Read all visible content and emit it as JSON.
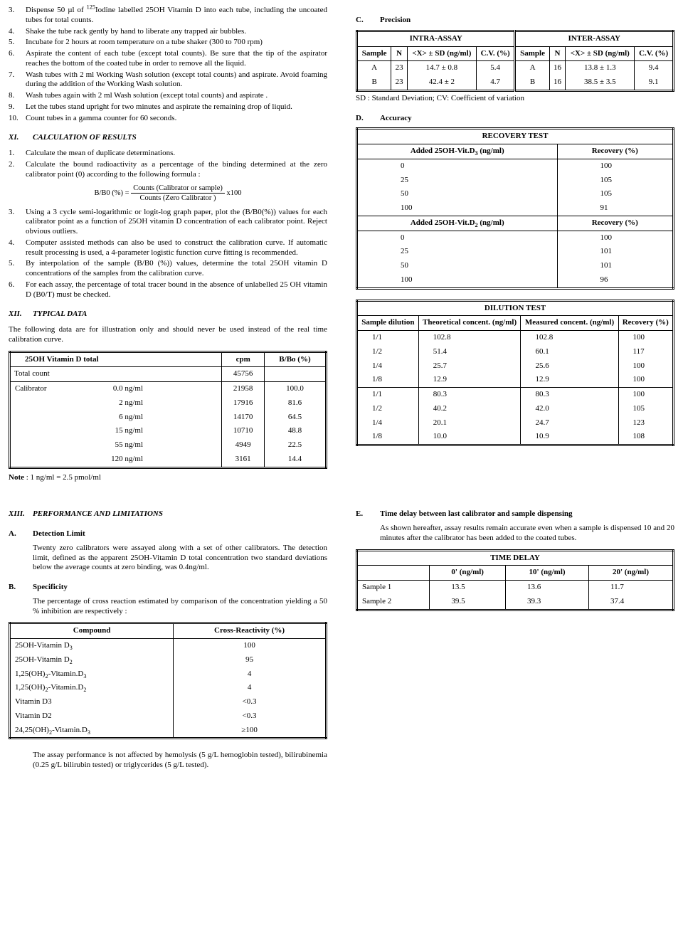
{
  "procedure": [
    {
      "n": "3.",
      "t": "Dispense 50 µl of <sup>125</sup>Iodine labelled 25OH Vitamin D into each tube, including the uncoated tubes for total counts."
    },
    {
      "n": "4.",
      "t": "Shake the tube rack gently by hand to liberate any trapped air bubbles."
    },
    {
      "n": "5.",
      "t": "Incubate for 2 hours at room temperature on a tube shaker (300 to 700 rpm)"
    },
    {
      "n": "6.",
      "t": "Aspirate the content of each tube (except total counts). Be sure that the tip of the aspirator reaches the bottom of the coated tube in order to remove all the liquid."
    },
    {
      "n": "7.",
      "t": "Wash tubes with 2 ml Working Wash solution (except total counts) and aspirate. Avoid foaming during the addition of the Working Wash solution."
    },
    {
      "n": "8.",
      "t": "Wash tubes again with 2 ml Wash solution (except total counts) and aspirate ."
    },
    {
      "n": "9.",
      "t": "Let the tubes stand upright for two minutes and aspirate the remaining drop of liquid."
    },
    {
      "n": "10.",
      "t": "Count tubes in a gamma counter for 60 seconds."
    }
  ],
  "xi": {
    "roman": "XI.",
    "title": "CALCULATION OF RESULTS"
  },
  "calc": [
    {
      "n": "1.",
      "t": "Calculate the mean of duplicate determinations."
    },
    {
      "n": "2.",
      "t": "Calculate the bound radioactivity as a percentage of the binding determined at the zero calibrator point (0) according to the following formula :"
    }
  ],
  "formula": {
    "prefix": "B/B0 (%) =",
    "top": "Counts (Calibrator or sample)",
    "bot": "Counts (Zero Calibrator )",
    "suffix": "x100"
  },
  "calc2": [
    {
      "n": "3.",
      "t": "Using a 3 cycle semi-logarithmic or logit-log graph paper, plot the (B/B0(%)) values for each calibrator point as a function of 25OH vitamin D concentration of each calibrator point. Reject obvious outliers."
    },
    {
      "n": "4.",
      "t": "Computer assisted methods can also be used to construct the calibration curve. If automatic result processing is used, a 4-parameter logistic function curve fitting is recommended."
    },
    {
      "n": "5.",
      "t": "By interpolation of the sample (B/B0 (%)) values, determine the total 25OH vitamin D concentrations of the samples from the calibration curve."
    },
    {
      "n": "6.",
      "t": "For each assay, the percentage of total tracer bound in the absence of unlabelled 25 OH vitamin D (B0/T) must be checked."
    }
  ],
  "xii": {
    "roman": "XII.",
    "title": "TYPICAL DATA"
  },
  "typical_intro": "The following data are for illustration only and should never be used instead of the real time calibration curve.",
  "typical": {
    "headers": [
      "25OH Vitamin D total",
      "cpm",
      "B/Bo (%)"
    ],
    "total_label": "Total count",
    "total_cpm": "45756",
    "cal_label": "Calibrator",
    "rows": [
      [
        "0.0 ng/ml",
        "21958",
        "100.0"
      ],
      [
        "2 ng/ml",
        "17916",
        "81.6"
      ],
      [
        "6 ng/ml",
        "14170",
        "64.5"
      ],
      [
        "15 ng/ml",
        "10710",
        "48.8"
      ],
      [
        "55 ng/ml",
        "4949",
        "22.5"
      ],
      [
        "120 ng/ml",
        "3161",
        "14.4"
      ]
    ]
  },
  "note_label": "Note",
  "note_text": " : 1 ng/ml = 2.5 pmol/ml",
  "xiii": {
    "roman": "XIII.",
    "title": "PERFORMANCE AND LIMITATIONS"
  },
  "a": {
    "letter": "A.",
    "title": "Detection Limit",
    "body": "Twenty zero calibrators were assayed along with a set of other calibrators. The detection limit, defined as the apparent 25OH-Vitamin D total concentration two standard deviations below the average counts at zero binding, was 0.4ng/ml."
  },
  "b": {
    "letter": "B.",
    "title": "Specificity",
    "body": "The percentage of cross reaction estimated by comparison of the concentration yielding a 50 % inhibition are respectively :"
  },
  "spec": {
    "headers": [
      "Compound",
      "Cross-Reactivity (%)"
    ],
    "rows": [
      [
        "25OH-Vitamin D<sub>3</sub>",
        "100"
      ],
      [
        "25OH-Vitamin D<sub>2</sub>",
        "95"
      ],
      [
        "1,25(OH)<sub>2</sub>-Vitamin.D<sub>3</sub>",
        "4"
      ],
      [
        "1,25(OH)<sub>2</sub>-Vitamin.D<sub>2</sub>",
        "4"
      ],
      [
        "Vitamin D3",
        "<0.3"
      ],
      [
        "Vitamin D2",
        "<0.3"
      ],
      [
        "24,25(OH)<sub>2</sub>-Vitamin.D<sub>3</sub>",
        "≥100"
      ]
    ]
  },
  "spec_footer": "The assay performance is not affected by hemolysis (5 g/L hemoglobin tested), bilirubinemia (0.25 g/L bilirubin tested) or triglycerides (5 g/L tested).",
  "c": {
    "letter": "C.",
    "title": "Precision"
  },
  "precision": {
    "intra": "INTRA-ASSAY",
    "inter": "INTER-ASSAY",
    "h": [
      "Sample",
      "N",
      "<X> ± SD (ng/ml)",
      "C.V. (%)"
    ],
    "rows": [
      [
        "A",
        "23",
        "14.7 ±  0.8",
        "5.4",
        "A",
        "16",
        "13.8 ± 1.3",
        "9.4"
      ],
      [
        "B",
        "23",
        "42.4 ±  2",
        "4.7",
        "B",
        "16",
        "38.5 ± 3.5",
        "9.1"
      ]
    ],
    "footer": "SD : Standard Deviation; CV: Coefficient of variation"
  },
  "d": {
    "letter": "D.",
    "title": "Accuracy"
  },
  "recovery": {
    "title": "RECOVERY TEST",
    "h1": "Added 25OH-Vit.D<sub>3</sub> (ng/ml)",
    "hr": "Recovery (%)",
    "g1": [
      [
        "0",
        "100"
      ],
      [
        "25",
        "105"
      ],
      [
        "50",
        "105"
      ],
      [
        "100",
        "91"
      ]
    ],
    "h2": "Added 25OH-Vit.D<sub>2</sub> (ng/ml)",
    "g2": [
      [
        "0",
        "100"
      ],
      [
        "25",
        "101"
      ],
      [
        "50",
        "101"
      ],
      [
        "100",
        "96"
      ]
    ]
  },
  "dilution": {
    "title": "DILUTION TEST",
    "h": [
      "Sample dilution",
      "Theoretical concent. (ng/ml)",
      "Measured concent. (ng/ml)",
      "Recovery (%)"
    ],
    "g1": [
      [
        "1/1",
        "102.8",
        "102.8",
        "100"
      ],
      [
        "1/2",
        "51.4",
        "60.1",
        "117"
      ],
      [
        "1/4",
        "25.7",
        "25.6",
        "100"
      ],
      [
        "1/8",
        "12.9",
        "12.9",
        "100"
      ]
    ],
    "g2": [
      [
        "1/1",
        "80.3",
        "80.3",
        "100"
      ],
      [
        "1/2",
        "40.2",
        "42.0",
        "105"
      ],
      [
        "1/4",
        "20.1",
        "24.7",
        "123"
      ],
      [
        "1/8",
        "10.0",
        "10.9",
        "108"
      ]
    ]
  },
  "e": {
    "letter": "E.",
    "title": "Time delay between last calibrator and sample dispensing",
    "body": "As shown hereafter, assay results remain accurate even when a sample is dispensed 10 and 20 minutes after the calibrator has been added to the coated tubes."
  },
  "timedelay": {
    "title": "TIME DELAY",
    "h": [
      "",
      "0' (ng/ml)",
      "10' (ng/ml)",
      "20' (ng/ml)"
    ],
    "rows": [
      [
        "Sample 1",
        "13.5",
        "13.6",
        "11.7"
      ],
      [
        "Sample 2",
        "39.5",
        "39.3",
        "37.4"
      ]
    ]
  }
}
